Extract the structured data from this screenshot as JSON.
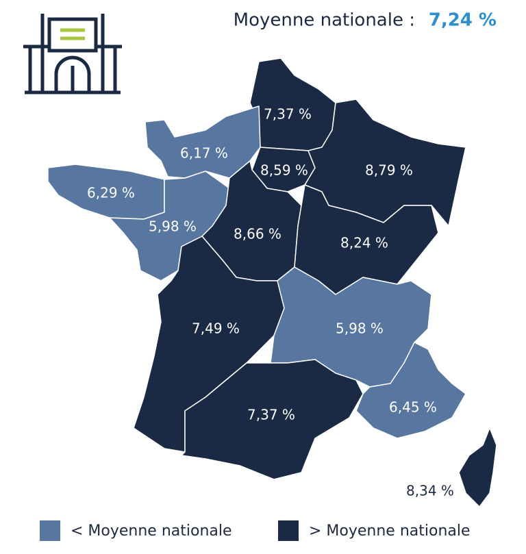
{
  "header": {
    "label": "Moyenne nationale :",
    "value": "7,24 %"
  },
  "regions": [
    {
      "label": "7,37 %",
      "color": "#1b2a44"
    },
    {
      "label": "6,17 %",
      "color": "#5877a0"
    },
    {
      "label": "6,29 %",
      "color": "#5877a0"
    },
    {
      "label": "5,98 %",
      "color": "#5877a0"
    },
    {
      "label": "8,59 %",
      "color": "#1b2a44"
    },
    {
      "label": "8,79 %",
      "color": "#1b2a44"
    },
    {
      "label": "8,66 %",
      "color": "#1b2a44"
    },
    {
      "label": "8,24 %",
      "color": "#1b2a44"
    },
    {
      "label": "7,49 %",
      "color": "#1b2a44"
    },
    {
      "label": "5,98 %",
      "color": "#5877a0"
    },
    {
      "label": "7,37 %",
      "color": "#1b2a44"
    },
    {
      "label": "6,45 %",
      "color": "#5877a0"
    },
    {
      "label": "8,34 %",
      "color": "#1b2a44"
    }
  ],
  "legend": [
    {
      "label": "< Moyenne nationale",
      "color": "#5877a0"
    },
    {
      "label": "> Moyenne nationale",
      "color": "#1b2a44"
    }
  ]
}
